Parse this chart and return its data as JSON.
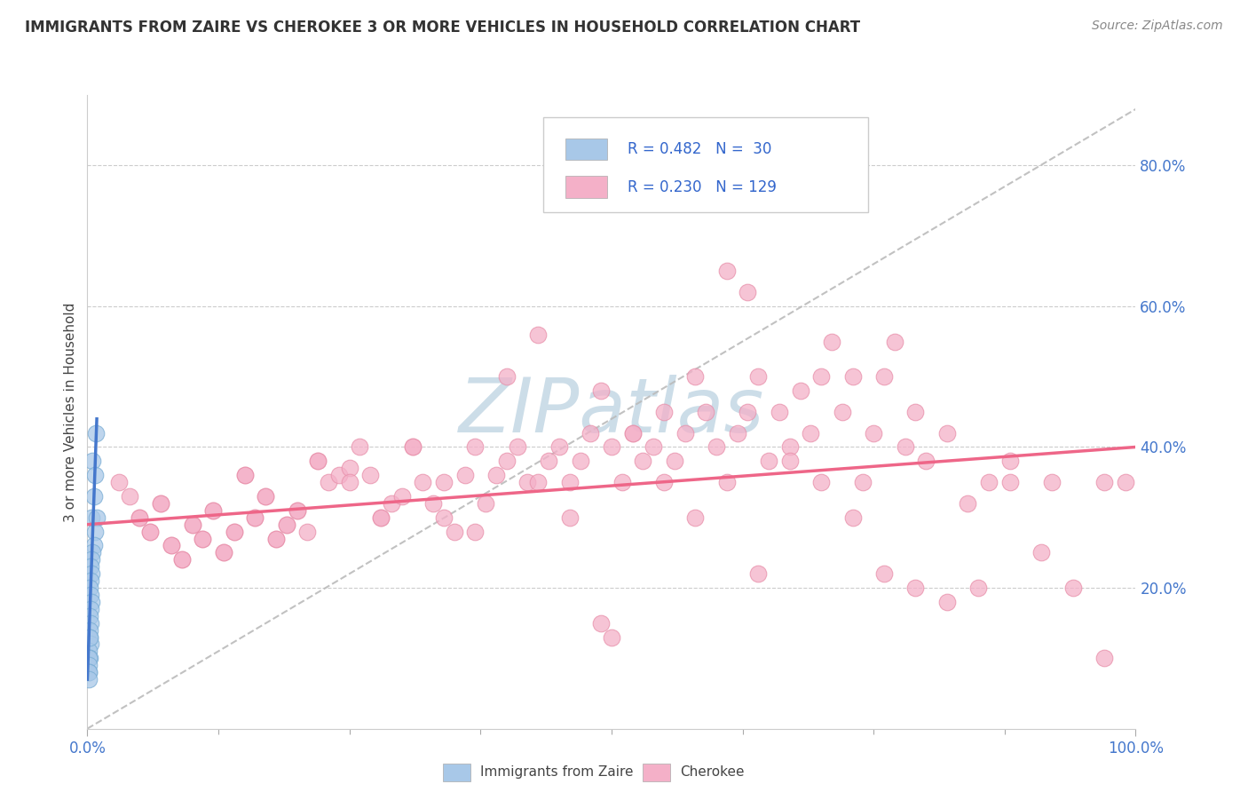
{
  "title": "IMMIGRANTS FROM ZAIRE VS CHEROKEE 3 OR MORE VEHICLES IN HOUSEHOLD CORRELATION CHART",
  "source_text": "Source: ZipAtlas.com",
  "ylabel": "3 or more Vehicles in Household",
  "blue_R": "0.482",
  "blue_N": "30",
  "pink_R": "0.230",
  "pink_N": "129",
  "blue_color": "#a8c8e8",
  "pink_color": "#f4b0c8",
  "blue_edge_color": "#7aadd4",
  "pink_edge_color": "#e890aa",
  "blue_line_color": "#4477cc",
  "pink_line_color": "#ee6688",
  "gray_dash_color": "#bbbbbb",
  "watermark_color": "#ccdde8",
  "legend_text_color": "#3366cc",
  "tick_color": "#4477cc",
  "grid_color": "#cccccc",
  "title_color": "#333333",
  "source_color": "#888888",
  "ylabel_color": "#444444",
  "background_color": "#ffffff",
  "blue_scatter_x": [
    0.005,
    0.008,
    0.007,
    0.006,
    0.004,
    0.009,
    0.007,
    0.006,
    0.005,
    0.004,
    0.003,
    0.004,
    0.003,
    0.002,
    0.003,
    0.004,
    0.003,
    0.002,
    0.003,
    0.002,
    0.002,
    0.003,
    0.001,
    0.002,
    0.001,
    0.001,
    0.001,
    0.001,
    0.002,
    0.001
  ],
  "blue_scatter_y": [
    0.38,
    0.42,
    0.36,
    0.33,
    0.3,
    0.3,
    0.28,
    0.26,
    0.25,
    0.24,
    0.23,
    0.22,
    0.21,
    0.2,
    0.19,
    0.18,
    0.17,
    0.16,
    0.15,
    0.14,
    0.13,
    0.12,
    0.11,
    0.1,
    0.1,
    0.09,
    0.08,
    0.08,
    0.13,
    0.07
  ],
  "pink_scatter_x": [
    0.03,
    0.05,
    0.06,
    0.07,
    0.08,
    0.09,
    0.1,
    0.11,
    0.12,
    0.13,
    0.14,
    0.15,
    0.16,
    0.17,
    0.18,
    0.19,
    0.2,
    0.21,
    0.22,
    0.23,
    0.24,
    0.25,
    0.26,
    0.27,
    0.28,
    0.29,
    0.3,
    0.31,
    0.32,
    0.33,
    0.34,
    0.35,
    0.36,
    0.37,
    0.38,
    0.39,
    0.4,
    0.41,
    0.42,
    0.43,
    0.44,
    0.45,
    0.46,
    0.47,
    0.48,
    0.49,
    0.5,
    0.51,
    0.52,
    0.53,
    0.54,
    0.55,
    0.56,
    0.57,
    0.58,
    0.59,
    0.6,
    0.61,
    0.62,
    0.63,
    0.64,
    0.65,
    0.66,
    0.67,
    0.68,
    0.69,
    0.7,
    0.71,
    0.72,
    0.73,
    0.74,
    0.75,
    0.76,
    0.77,
    0.78,
    0.79,
    0.8,
    0.82,
    0.84,
    0.86,
    0.88,
    0.92,
    0.97,
    0.04,
    0.05,
    0.06,
    0.07,
    0.08,
    0.09,
    0.1,
    0.11,
    0.12,
    0.13,
    0.14,
    0.15,
    0.16,
    0.17,
    0.18,
    0.19,
    0.2,
    0.22,
    0.25,
    0.28,
    0.31,
    0.34,
    0.37,
    0.4,
    0.43,
    0.46,
    0.49,
    0.52,
    0.55,
    0.58,
    0.61,
    0.64,
    0.67,
    0.7,
    0.73,
    0.76,
    0.79,
    0.82,
    0.85,
    0.88,
    0.91,
    0.94,
    0.97,
    0.99,
    0.5,
    0.63
  ],
  "pink_scatter_y": [
    0.35,
    0.3,
    0.28,
    0.32,
    0.26,
    0.24,
    0.29,
    0.27,
    0.31,
    0.25,
    0.28,
    0.36,
    0.3,
    0.33,
    0.27,
    0.29,
    0.31,
    0.28,
    0.38,
    0.35,
    0.36,
    0.37,
    0.4,
    0.36,
    0.3,
    0.32,
    0.33,
    0.4,
    0.35,
    0.32,
    0.3,
    0.28,
    0.36,
    0.4,
    0.32,
    0.36,
    0.38,
    0.4,
    0.35,
    0.56,
    0.38,
    0.4,
    0.35,
    0.38,
    0.42,
    0.48,
    0.4,
    0.35,
    0.42,
    0.38,
    0.4,
    0.45,
    0.38,
    0.42,
    0.5,
    0.45,
    0.4,
    0.65,
    0.42,
    0.45,
    0.5,
    0.38,
    0.45,
    0.4,
    0.48,
    0.42,
    0.5,
    0.55,
    0.45,
    0.5,
    0.35,
    0.42,
    0.5,
    0.55,
    0.4,
    0.45,
    0.38,
    0.42,
    0.32,
    0.35,
    0.38,
    0.35,
    0.35,
    0.33,
    0.3,
    0.28,
    0.32,
    0.26,
    0.24,
    0.29,
    0.27,
    0.31,
    0.25,
    0.28,
    0.36,
    0.3,
    0.33,
    0.27,
    0.29,
    0.31,
    0.38,
    0.35,
    0.3,
    0.4,
    0.35,
    0.28,
    0.5,
    0.35,
    0.3,
    0.15,
    0.42,
    0.35,
    0.3,
    0.35,
    0.22,
    0.38,
    0.35,
    0.3,
    0.22,
    0.2,
    0.18,
    0.2,
    0.35,
    0.25,
    0.2,
    0.1,
    0.35,
    0.13,
    0.62
  ],
  "xlim": [
    0.0,
    1.0
  ],
  "ylim": [
    0.0,
    0.9
  ],
  "ytick_positions": [
    0.2,
    0.4,
    0.6,
    0.8
  ],
  "ytick_labels": [
    "20.0%",
    "40.0%",
    "60.0%",
    "80.0%"
  ],
  "xtick_positions": [
    0.0,
    1.0
  ],
  "xtick_labels": [
    "0.0%",
    "100.0%"
  ],
  "blue_line_x": [
    0.0,
    0.009
  ],
  "blue_line_y_start": 0.07,
  "blue_line_y_end": 0.44,
  "pink_line_x": [
    0.0,
    1.0
  ],
  "pink_line_y_start": 0.29,
  "pink_line_y_end": 0.4,
  "gray_line_x": [
    0.0,
    1.0
  ],
  "gray_line_y_start": 0.0,
  "gray_line_y_end": 0.88,
  "legend_r1": "R = 0.482",
  "legend_n1": "N =  30",
  "legend_r2": "R = 0.230",
  "legend_n2": "N = 129",
  "bottom_legend": [
    "Immigrants from Zaire",
    "Cherokee"
  ]
}
